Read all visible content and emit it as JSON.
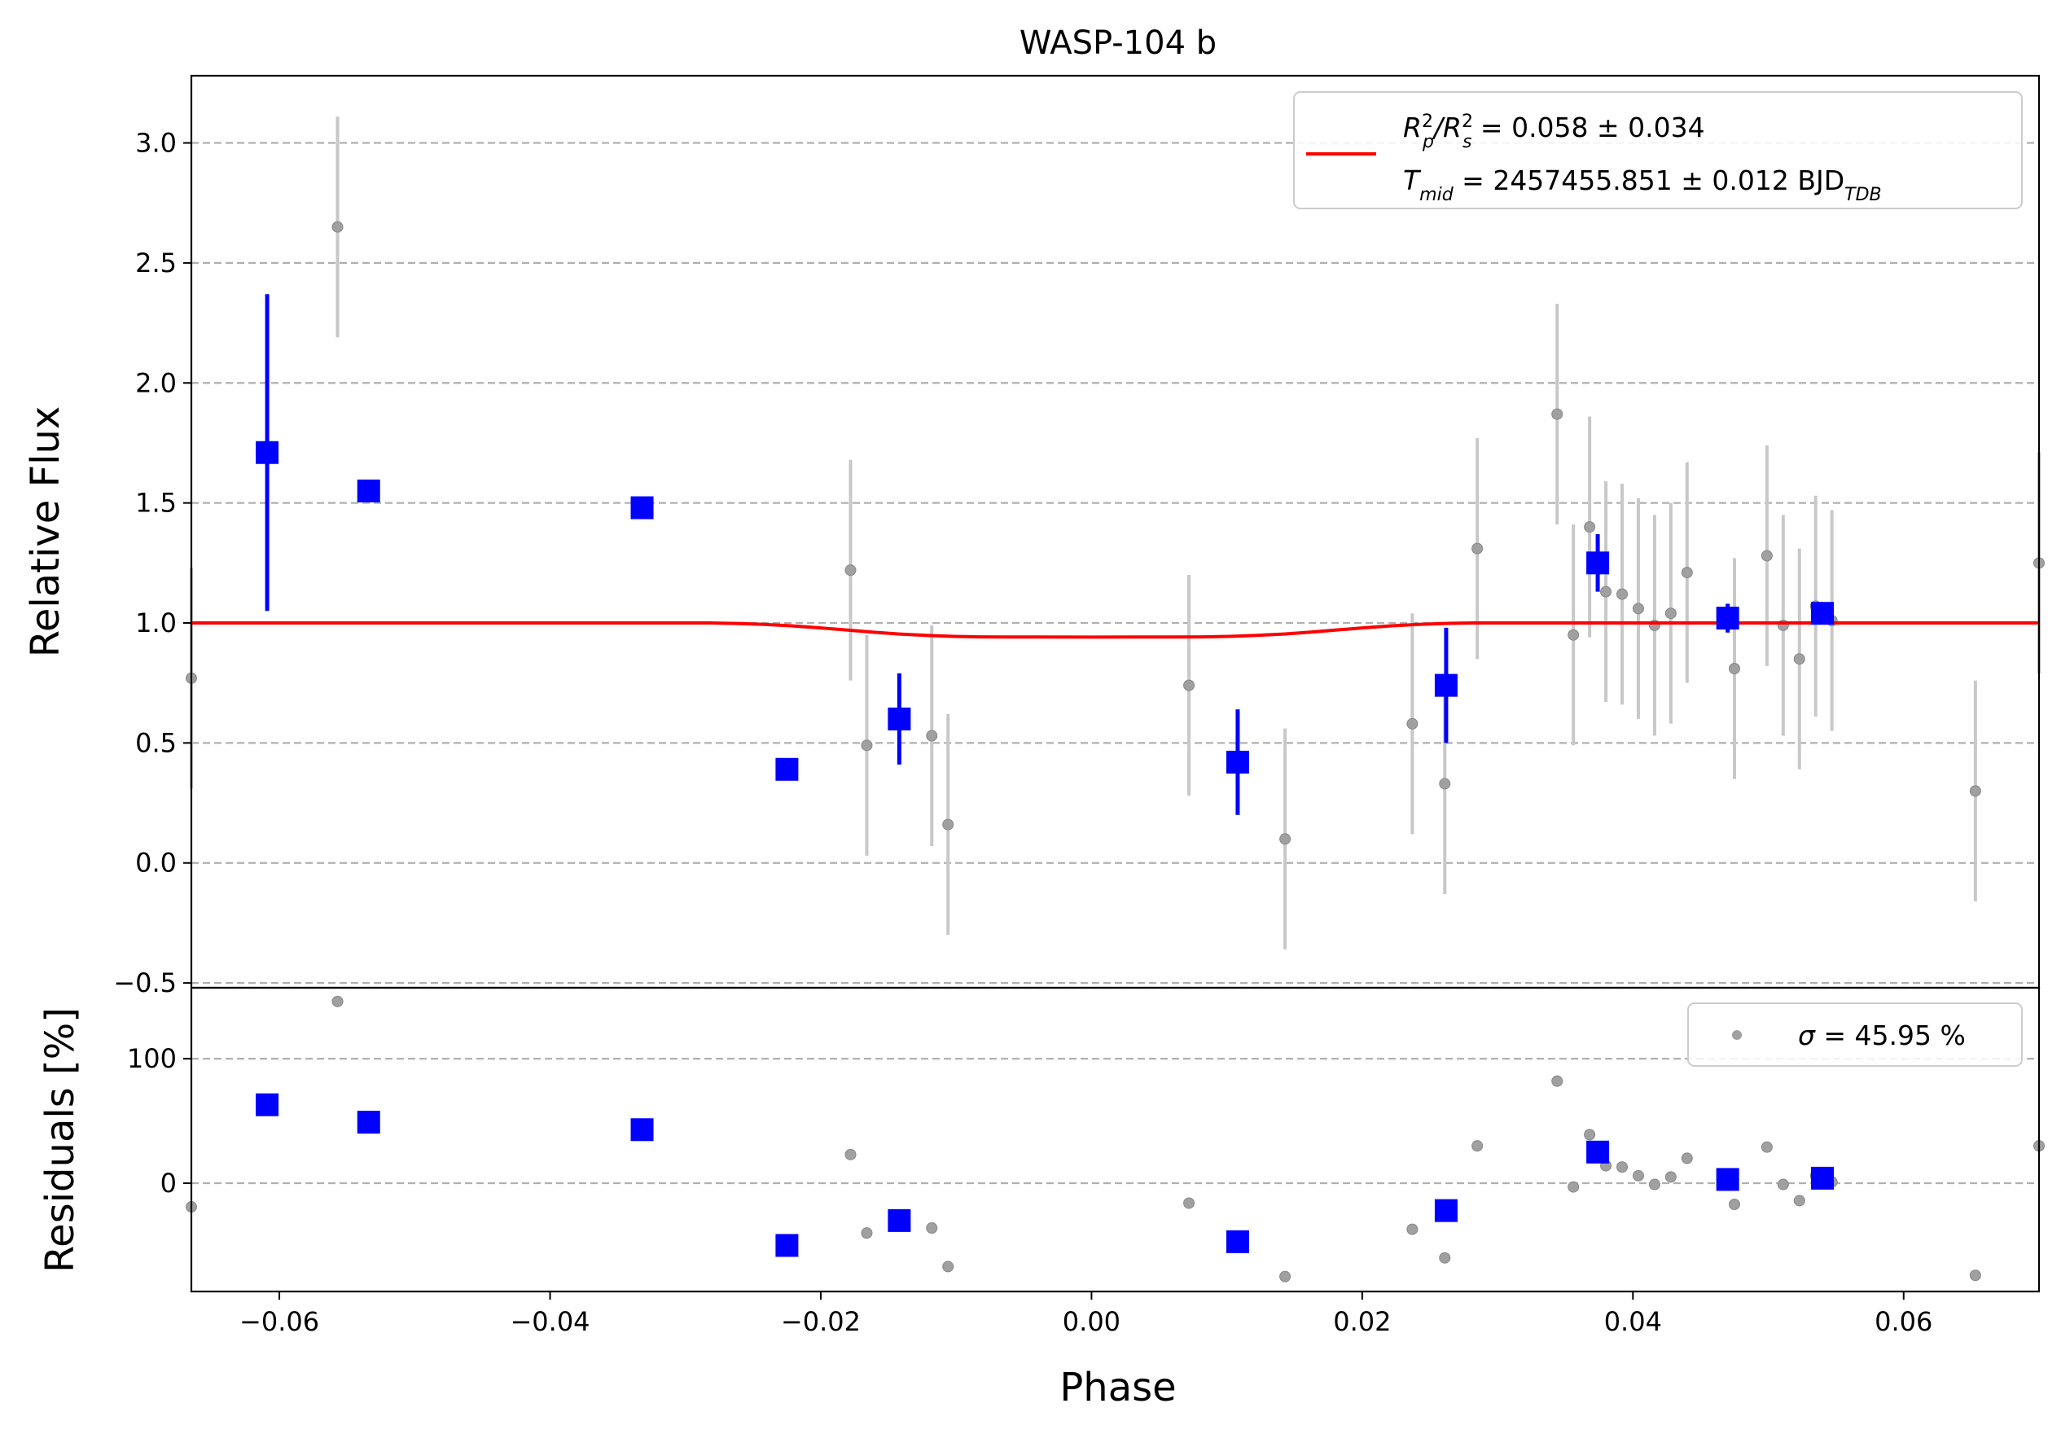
{
  "chart_data": {
    "type": "scatter",
    "title": "WASP-104 b",
    "xlabel": "Phase",
    "xlim": [
      -0.0665,
      0.07
    ],
    "x_ticks": [
      "−0.06",
      "−0.04",
      "−0.02",
      "0.00",
      "0.02",
      "0.04",
      "0.06"
    ],
    "x_tick_values": [
      -0.06,
      -0.04,
      -0.02,
      0.0,
      0.02,
      0.04,
      0.06
    ],
    "top_panel": {
      "ylabel": "Relative Flux",
      "ylim": [
        -0.52,
        3.28
      ],
      "y_ticks": [
        "−0.5",
        "0.0",
        "0.5",
        "1.0",
        "1.5",
        "2.0",
        "2.5",
        "3.0"
      ],
      "y_tick_values": [
        -0.5,
        0.0,
        0.5,
        1.0,
        1.5,
        2.0,
        2.5,
        3.0
      ],
      "grid": "horizontal dashed",
      "legend": {
        "placement": "top-right",
        "line1_prefix": "R",
        "line1_sub1": "p",
        "line1_sup1": "2",
        "line1_slash": "/R",
        "line1_sub2": "s",
        "line1_sup2": "2",
        "line1_value": " = 0.058 ± 0.034",
        "line2_prefix": "T",
        "line2_sub": "mid",
        "line2_value": " = 2457455.851 ± 0.012 BJD",
        "line2_unit_sub": "TDB"
      },
      "raw_points": [
        {
          "x": -0.0665,
          "y": 0.77,
          "err": 0.46
        },
        {
          "x": -0.0557,
          "y": 2.65,
          "err": 0.46
        },
        {
          "x": -0.0178,
          "y": 1.22,
          "err": 0.46
        },
        {
          "x": -0.0166,
          "y": 0.49,
          "err": 0.46
        },
        {
          "x": -0.0118,
          "y": 0.53,
          "err": 0.46
        },
        {
          "x": -0.0106,
          "y": 0.16,
          "err": 0.46
        },
        {
          "x": 0.0072,
          "y": 0.74,
          "err": 0.46
        },
        {
          "x": 0.0143,
          "y": 0.1,
          "err": 0.46
        },
        {
          "x": 0.0237,
          "y": 0.58,
          "err": 0.46
        },
        {
          "x": 0.0261,
          "y": 0.33,
          "err": 0.46
        },
        {
          "x": 0.0285,
          "y": 1.31,
          "err": 0.46
        },
        {
          "x": 0.0344,
          "y": 1.87,
          "err": 0.46
        },
        {
          "x": 0.0356,
          "y": 0.95,
          "err": 0.46
        },
        {
          "x": 0.0368,
          "y": 1.4,
          "err": 0.46
        },
        {
          "x": 0.038,
          "y": 1.13,
          "err": 0.46
        },
        {
          "x": 0.0392,
          "y": 1.12,
          "err": 0.46
        },
        {
          "x": 0.0404,
          "y": 1.06,
          "err": 0.46
        },
        {
          "x": 0.0416,
          "y": 0.99,
          "err": 0.46
        },
        {
          "x": 0.0428,
          "y": 1.04,
          "err": 0.46
        },
        {
          "x": 0.044,
          "y": 1.21,
          "err": 0.46
        },
        {
          "x": 0.0475,
          "y": 0.81,
          "err": 0.46
        },
        {
          "x": 0.0499,
          "y": 1.28,
          "err": 0.46
        },
        {
          "x": 0.0511,
          "y": 0.99,
          "err": 0.46
        },
        {
          "x": 0.0523,
          "y": 0.85,
          "err": 0.46
        },
        {
          "x": 0.0535,
          "y": 1.07,
          "err": 0.46
        },
        {
          "x": 0.0547,
          "y": 1.01,
          "err": 0.46
        },
        {
          "x": 0.0653,
          "y": 0.3,
          "err": 0.46
        },
        {
          "x": 0.07,
          "y": 1.25,
          "err": 0.46
        }
      ],
      "binned_points": [
        {
          "x": -0.0609,
          "y": 1.71,
          "err": 0.66
        },
        {
          "x": -0.0534,
          "y": 1.55,
          "err": 0.04
        },
        {
          "x": -0.0332,
          "y": 1.48,
          "err": 0.04
        },
        {
          "x": -0.0225,
          "y": 0.39,
          "err": 0.04
        },
        {
          "x": -0.0142,
          "y": 0.6,
          "err": 0.19
        },
        {
          "x": 0.0108,
          "y": 0.42,
          "err": 0.22
        },
        {
          "x": 0.0262,
          "y": 0.74,
          "err": 0.24
        },
        {
          "x": 0.0374,
          "y": 1.25,
          "err": 0.12
        },
        {
          "x": 0.047,
          "y": 1.02,
          "err": 0.06
        },
        {
          "x": 0.054,
          "y": 1.04,
          "err": 0.04
        }
      ],
      "model": {
        "x": [
          -0.0665,
          -0.0282,
          -0.0262,
          -0.0242,
          -0.0222,
          -0.0202,
          -0.0182,
          -0.0162,
          -0.0142,
          -0.0122,
          -0.0102,
          -0.0082,
          -0.0062,
          0.0,
          0.0062,
          0.0082,
          0.0102,
          0.0122,
          0.0142,
          0.0162,
          0.0182,
          0.0202,
          0.0222,
          0.0242,
          0.0262,
          0.0282,
          0.07
        ],
        "y": [
          1.0,
          1.0,
          0.998,
          0.994,
          0.988,
          0.98,
          0.971,
          0.962,
          0.954,
          0.948,
          0.944,
          0.942,
          0.9415,
          0.941,
          0.9415,
          0.942,
          0.944,
          0.948,
          0.954,
          0.962,
          0.971,
          0.98,
          0.988,
          0.994,
          0.998,
          1.0,
          1.0
        ]
      }
    },
    "bottom_panel": {
      "ylabel": "Residuals [%]",
      "ylim": [
        -87,
        157
      ],
      "y_ticks": [
        "0",
        "100"
      ],
      "y_tick_values": [
        0,
        100
      ],
      "grid": "horizontal dashed",
      "legend": {
        "placement": "top-right",
        "sigma_symbol": "σ",
        "text": " = 45.95 %"
      },
      "raw_points": [
        {
          "x": -0.0665,
          "y": -19
        },
        {
          "x": -0.0557,
          "y": 146
        },
        {
          "x": -0.0178,
          "y": 23
        },
        {
          "x": -0.0166,
          "y": -40
        },
        {
          "x": -0.0118,
          "y": -36
        },
        {
          "x": -0.0106,
          "y": -67
        },
        {
          "x": 0.0072,
          "y": -16
        },
        {
          "x": 0.0143,
          "y": -75
        },
        {
          "x": 0.0237,
          "y": -37
        },
        {
          "x": 0.0261,
          "y": -60
        },
        {
          "x": 0.0285,
          "y": 30
        },
        {
          "x": 0.0344,
          "y": 82
        },
        {
          "x": 0.0356,
          "y": -3
        },
        {
          "x": 0.0368,
          "y": 39
        },
        {
          "x": 0.038,
          "y": 14
        },
        {
          "x": 0.0392,
          "y": 13
        },
        {
          "x": 0.0404,
          "y": 6
        },
        {
          "x": 0.0416,
          "y": -1
        },
        {
          "x": 0.0428,
          "y": 5
        },
        {
          "x": 0.044,
          "y": 20
        },
        {
          "x": 0.0475,
          "y": -17
        },
        {
          "x": 0.0499,
          "y": 29
        },
        {
          "x": 0.0511,
          "y": -1
        },
        {
          "x": 0.0523,
          "y": -14
        },
        {
          "x": 0.0535,
          "y": 6
        },
        {
          "x": 0.0547,
          "y": 1
        },
        {
          "x": 0.0653,
          "y": -74
        },
        {
          "x": 0.07,
          "y": 30
        }
      ],
      "binned_points": [
        {
          "x": -0.0609,
          "y": 63
        },
        {
          "x": -0.0534,
          "y": 49
        },
        {
          "x": -0.0332,
          "y": 43
        },
        {
          "x": -0.0225,
          "y": -50
        },
        {
          "x": -0.0142,
          "y": -30
        },
        {
          "x": 0.0108,
          "y": -47
        },
        {
          "x": 0.0262,
          "y": -22
        },
        {
          "x": 0.0374,
          "y": 25
        },
        {
          "x": 0.047,
          "y": 3
        },
        {
          "x": 0.054,
          "y": 4
        }
      ]
    },
    "colors": {
      "model": "#ff0000",
      "binned": "#0000ff",
      "raw_point": "#a0a0a0",
      "raw_errorbar": "#c8c8c8",
      "grid": "#b0b0b0"
    }
  }
}
